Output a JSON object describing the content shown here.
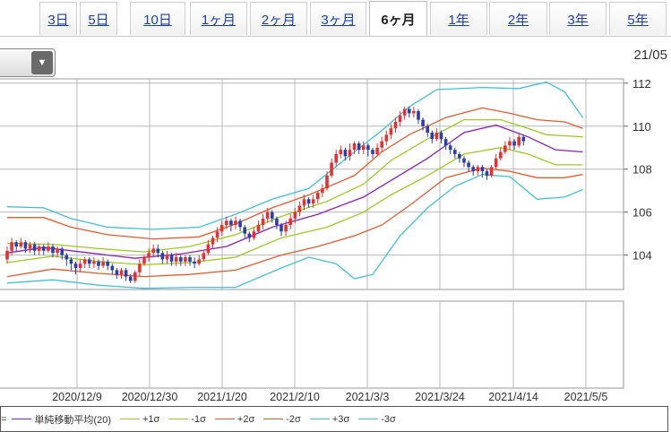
{
  "tabs": [
    {
      "label": "3日",
      "active": false
    },
    {
      "label": "5日",
      "active": false
    },
    {
      "label": "10日",
      "active": false
    },
    {
      "label": "1ヶ月",
      "active": false
    },
    {
      "label": "2ヶ月",
      "active": false
    },
    {
      "label": "3ヶ月",
      "active": false
    },
    {
      "label": "6ヶ月",
      "active": true
    },
    {
      "label": "1年",
      "active": false
    },
    {
      "label": "2年",
      "active": false
    },
    {
      "label": "3年",
      "active": false
    },
    {
      "label": "5年",
      "active": false
    }
  ],
  "corner_date": "21/05",
  "dropdown_icon": "chevron-down-icon",
  "colors": {
    "up": "#e83030",
    "down": "#2a3fa8",
    "sma": "#8b1fc0",
    "s1": "#9ccc1f",
    "s2": "#e85a2a",
    "s3": "#3fc2d8",
    "grid": "#b8b8b8"
  },
  "legend": {
    "prefix": "=",
    "items": [
      {
        "label": "単純移動平均(20)",
        "color": "#8b1fc0"
      },
      {
        "label": "+1σ",
        "color": "#9ccc1f"
      },
      {
        "label": "-1σ",
        "color": "#9ccc1f"
      },
      {
        "label": "+2σ",
        "color": "#e85a2a"
      },
      {
        "label": "-2σ",
        "color": "#e85a2a"
      },
      {
        "label": "+3σ",
        "color": "#3fc2d8"
      },
      {
        "label": "-3σ",
        "color": "#3fc2d8"
      }
    ]
  },
  "chart_data": {
    "type": "candlestick",
    "x_tick_labels": [
      "2020/12/9",
      "2020/12/30",
      "2021/1/20",
      "2021/2/10",
      "2021/3/3",
      "2021/3/24",
      "2021/4/14",
      "2021/5/5"
    ],
    "y_ticks": [
      104,
      106,
      108,
      110,
      112
    ],
    "y_range": [
      102.4,
      112.2
    ],
    "grid": true,
    "bands": [
      {
        "name": "単純移動平均(20)",
        "color": "#8b1fc0",
        "points": [
          [
            0,
            104.1
          ],
          [
            8,
            104.35
          ],
          [
            18,
            104.1
          ],
          [
            28,
            103.85
          ],
          [
            38,
            104.05
          ],
          [
            48,
            104.4
          ],
          [
            58,
            105.3
          ],
          [
            68,
            105.9
          ],
          [
            78,
            106.7
          ],
          [
            85,
            107.6
          ],
          [
            92,
            108.5
          ],
          [
            100,
            109.7
          ],
          [
            107,
            110.05
          ],
          [
            114,
            109.5
          ],
          [
            120,
            108.9
          ],
          [
            126,
            108.8
          ]
        ]
      },
      {
        "name": "+1σ",
        "color": "#9ccc1f",
        "points": [
          [
            0,
            104.55
          ],
          [
            10,
            104.5
          ],
          [
            20,
            104.3
          ],
          [
            30,
            104.15
          ],
          [
            40,
            104.4
          ],
          [
            50,
            104.95
          ],
          [
            60,
            105.8
          ],
          [
            70,
            106.5
          ],
          [
            78,
            107.3
          ],
          [
            84,
            108.4
          ],
          [
            92,
            109.4
          ],
          [
            100,
            110.3
          ],
          [
            108,
            110.3
          ],
          [
            114,
            109.9
          ],
          [
            118,
            109.6
          ],
          [
            126,
            109.5
          ]
        ]
      },
      {
        "name": "-1σ",
        "color": "#9ccc1f",
        "points": [
          [
            0,
            103.65
          ],
          [
            10,
            103.95
          ],
          [
            20,
            103.7
          ],
          [
            30,
            103.55
          ],
          [
            40,
            103.65
          ],
          [
            50,
            103.9
          ],
          [
            60,
            104.8
          ],
          [
            70,
            105.3
          ],
          [
            78,
            106.0
          ],
          [
            84,
            106.8
          ],
          [
            92,
            107.7
          ],
          [
            100,
            108.7
          ],
          [
            108,
            109.0
          ],
          [
            114,
            108.7
          ],
          [
            120,
            108.2
          ],
          [
            126,
            108.2
          ]
        ]
      },
      {
        "name": "+2σ",
        "color": "#e85a2a",
        "points": [
          [
            0,
            105.75
          ],
          [
            8,
            105.75
          ],
          [
            14,
            105.3
          ],
          [
            22,
            104.95
          ],
          [
            32,
            104.75
          ],
          [
            42,
            104.85
          ],
          [
            50,
            105.45
          ],
          [
            58,
            106.2
          ],
          [
            66,
            106.8
          ],
          [
            76,
            107.7
          ],
          [
            82,
            108.8
          ],
          [
            88,
            109.6
          ],
          [
            96,
            110.4
          ],
          [
            104,
            110.85
          ],
          [
            110,
            110.6
          ],
          [
            116,
            110.3
          ],
          [
            122,
            110.2
          ],
          [
            126,
            109.9
          ]
        ]
      },
      {
        "name": "-2σ",
        "color": "#e85a2a",
        "points": [
          [
            0,
            103.0
          ],
          [
            10,
            103.35
          ],
          [
            20,
            103.15
          ],
          [
            30,
            103.0
          ],
          [
            40,
            103.1
          ],
          [
            50,
            103.3
          ],
          [
            60,
            104.0
          ],
          [
            68,
            104.4
          ],
          [
            76,
            104.9
          ],
          [
            82,
            105.4
          ],
          [
            88,
            106.3
          ],
          [
            96,
            107.6
          ],
          [
            104,
            108.05
          ],
          [
            110,
            107.9
          ],
          [
            116,
            107.6
          ],
          [
            122,
            107.6
          ],
          [
            126,
            107.75
          ]
        ]
      },
      {
        "name": "+3σ",
        "color": "#3fc2d8",
        "points": [
          [
            0,
            106.25
          ],
          [
            8,
            106.2
          ],
          [
            14,
            105.7
          ],
          [
            22,
            105.3
          ],
          [
            32,
            105.2
          ],
          [
            42,
            105.3
          ],
          [
            50,
            105.9
          ],
          [
            58,
            106.6
          ],
          [
            66,
            107.1
          ],
          [
            76,
            108.8
          ],
          [
            82,
            109.8
          ],
          [
            88,
            110.9
          ],
          [
            94,
            111.7
          ],
          [
            104,
            111.8
          ],
          [
            112,
            111.75
          ],
          [
            118,
            112.05
          ],
          [
            122,
            111.6
          ],
          [
            126,
            110.4
          ]
        ]
      },
      {
        "name": "-3σ",
        "color": "#3fc2d8",
        "points": [
          [
            0,
            102.7
          ],
          [
            10,
            102.85
          ],
          [
            20,
            102.6
          ],
          [
            30,
            102.45
          ],
          [
            40,
            102.5
          ],
          [
            50,
            102.5
          ],
          [
            60,
            103.4
          ],
          [
            66,
            103.9
          ],
          [
            72,
            103.6
          ],
          [
            76,
            102.9
          ],
          [
            80,
            103.1
          ],
          [
            86,
            104.9
          ],
          [
            92,
            106.2
          ],
          [
            98,
            107.2
          ],
          [
            104,
            107.75
          ],
          [
            110,
            107.65
          ],
          [
            116,
            106.6
          ],
          [
            122,
            106.7
          ],
          [
            126,
            107.05
          ]
        ]
      }
    ],
    "candles": [
      [
        103.8,
        104.2,
        104.4,
        103.6
      ],
      [
        104.2,
        104.6,
        104.8,
        104.0
      ],
      [
        104.6,
        104.4,
        104.7,
        104.2
      ],
      [
        104.4,
        104.6,
        104.8,
        104.3
      ],
      [
        104.6,
        104.3,
        104.7,
        104.1
      ],
      [
        104.3,
        104.5,
        104.6,
        104.1
      ],
      [
        104.5,
        104.2,
        104.6,
        104.0
      ],
      [
        104.2,
        104.4,
        104.5,
        104.0
      ],
      [
        104.4,
        104.2,
        104.5,
        104.0
      ],
      [
        104.2,
        104.4,
        104.6,
        104.1
      ],
      [
        104.4,
        104.1,
        104.5,
        103.9
      ],
      [
        104.1,
        104.3,
        104.4,
        103.9
      ],
      [
        104.3,
        104.0,
        104.4,
        103.8
      ],
      [
        104.0,
        103.8,
        104.1,
        103.5
      ],
      [
        103.8,
        103.6,
        103.9,
        103.3
      ],
      [
        103.6,
        103.4,
        103.7,
        103.1
      ],
      [
        103.4,
        103.6,
        103.8,
        103.2
      ],
      [
        103.6,
        103.8,
        103.9,
        103.4
      ],
      [
        103.8,
        103.6,
        103.9,
        103.4
      ],
      [
        103.6,
        103.7,
        103.9,
        103.4
      ],
      [
        103.7,
        103.5,
        103.8,
        103.3
      ],
      [
        103.5,
        103.7,
        103.9,
        103.4
      ],
      [
        103.7,
        103.5,
        103.8,
        103.3
      ],
      [
        103.5,
        103.3,
        103.6,
        103.1
      ],
      [
        103.3,
        103.1,
        103.4,
        102.9
      ],
      [
        103.1,
        103.3,
        103.4,
        102.9
      ],
      [
        103.3,
        103.0,
        103.4,
        102.8
      ],
      [
        103.0,
        102.8,
        103.1,
        102.7
      ],
      [
        102.8,
        103.2,
        103.3,
        102.7
      ],
      [
        103.2,
        103.6,
        103.8,
        103.0
      ],
      [
        103.6,
        103.9,
        104.0,
        103.5
      ],
      [
        103.9,
        104.1,
        104.3,
        103.7
      ],
      [
        104.1,
        104.3,
        104.5,
        103.9
      ],
      [
        104.3,
        104.1,
        104.5,
        103.9
      ],
      [
        104.1,
        103.8,
        104.2,
        103.6
      ],
      [
        103.8,
        104.0,
        104.2,
        103.6
      ],
      [
        104.0,
        103.7,
        104.1,
        103.5
      ],
      [
        103.7,
        103.9,
        104.1,
        103.5
      ],
      [
        103.9,
        103.7,
        104.0,
        103.5
      ],
      [
        103.7,
        103.9,
        104.0,
        103.5
      ],
      [
        103.9,
        103.7,
        104.0,
        103.5
      ],
      [
        103.7,
        103.6,
        103.9,
        103.4
      ],
      [
        103.6,
        103.8,
        104.0,
        103.5
      ],
      [
        103.8,
        104.1,
        104.2,
        103.7
      ],
      [
        104.1,
        104.5,
        104.7,
        104.0
      ],
      [
        104.5,
        104.8,
        104.9,
        104.3
      ],
      [
        104.8,
        105.1,
        105.3,
        104.6
      ],
      [
        105.1,
        105.4,
        105.6,
        104.9
      ],
      [
        105.4,
        105.6,
        105.8,
        105.2
      ],
      [
        105.6,
        105.4,
        105.7,
        105.1
      ],
      [
        105.4,
        105.6,
        105.8,
        105.2
      ],
      [
        105.6,
        105.3,
        105.7,
        105.1
      ],
      [
        105.3,
        105.0,
        105.4,
        104.8
      ],
      [
        105.0,
        104.8,
        105.1,
        104.6
      ],
      [
        104.8,
        105.1,
        105.3,
        104.7
      ],
      [
        105.1,
        105.4,
        105.6,
        105.0
      ],
      [
        105.4,
        105.7,
        105.9,
        105.2
      ],
      [
        105.7,
        106.0,
        106.2,
        105.5
      ],
      [
        106.0,
        105.7,
        106.1,
        105.5
      ],
      [
        105.7,
        105.4,
        105.8,
        105.2
      ],
      [
        105.4,
        105.1,
        105.5,
        104.9
      ],
      [
        105.1,
        105.4,
        105.6,
        104.9
      ],
      [
        105.4,
        105.7,
        105.9,
        105.2
      ],
      [
        105.7,
        106.0,
        106.2,
        105.5
      ],
      [
        106.0,
        106.3,
        106.5,
        105.8
      ],
      [
        106.3,
        106.6,
        106.8,
        106.1
      ],
      [
        106.6,
        106.4,
        106.7,
        106.2
      ],
      [
        106.4,
        106.6,
        106.8,
        106.2
      ],
      [
        106.6,
        106.9,
        107.0,
        106.4
      ],
      [
        106.9,
        107.1,
        107.3,
        106.7
      ],
      [
        107.1,
        107.7,
        107.9,
        107.0
      ],
      [
        107.7,
        108.3,
        108.5,
        107.6
      ],
      [
        108.3,
        108.7,
        108.9,
        108.1
      ],
      [
        108.7,
        108.9,
        109.1,
        108.5
      ],
      [
        108.9,
        108.6,
        109.0,
        108.4
      ],
      [
        108.6,
        108.9,
        109.2,
        108.4
      ],
      [
        108.9,
        109.2,
        109.3,
        108.7
      ],
      [
        109.2,
        108.9,
        109.3,
        108.7
      ],
      [
        108.9,
        109.1,
        109.3,
        108.7
      ],
      [
        109.1,
        108.9,
        109.2,
        108.6
      ],
      [
        108.9,
        108.7,
        109.0,
        108.5
      ],
      [
        108.7,
        109.0,
        109.2,
        108.6
      ],
      [
        109.0,
        109.3,
        109.5,
        108.8
      ],
      [
        109.3,
        109.6,
        109.8,
        109.1
      ],
      [
        109.6,
        109.9,
        110.1,
        109.4
      ],
      [
        109.9,
        110.2,
        110.4,
        109.7
      ],
      [
        110.2,
        110.5,
        110.7,
        110.0
      ],
      [
        110.5,
        110.8,
        110.9,
        110.3
      ],
      [
        110.8,
        110.6,
        110.9,
        110.4
      ],
      [
        110.6,
        110.7,
        110.9,
        110.4
      ],
      [
        110.7,
        110.3,
        110.8,
        110.1
      ],
      [
        110.3,
        110.0,
        110.4,
        109.8
      ],
      [
        110.0,
        109.7,
        110.1,
        109.5
      ],
      [
        109.7,
        109.4,
        109.8,
        109.2
      ],
      [
        109.4,
        109.7,
        109.9,
        109.3
      ],
      [
        109.7,
        109.4,
        109.8,
        109.2
      ],
      [
        109.4,
        109.1,
        109.5,
        108.9
      ],
      [
        109.1,
        108.9,
        109.2,
        108.7
      ],
      [
        108.9,
        108.7,
        109.0,
        108.5
      ],
      [
        108.7,
        108.5,
        108.8,
        108.3
      ],
      [
        108.5,
        108.3,
        108.6,
        108.1
      ],
      [
        108.3,
        108.1,
        108.4,
        107.9
      ],
      [
        108.1,
        107.9,
        108.2,
        107.7
      ],
      [
        107.9,
        108.1,
        108.2,
        107.7
      ],
      [
        108.1,
        107.9,
        108.2,
        107.6
      ],
      [
        107.9,
        107.7,
        108.0,
        107.5
      ],
      [
        107.7,
        108.1,
        108.2,
        107.6
      ],
      [
        108.1,
        108.5,
        108.7,
        108.0
      ],
      [
        108.5,
        108.8,
        109.0,
        108.4
      ],
      [
        108.8,
        109.1,
        109.3,
        108.7
      ],
      [
        109.1,
        109.3,
        109.5,
        108.9
      ],
      [
        109.3,
        109.1,
        109.4,
        108.9
      ],
      [
        109.1,
        109.5,
        109.7,
        109.0
      ],
      [
        109.5,
        109.3,
        109.6,
        109.1
      ]
    ]
  }
}
